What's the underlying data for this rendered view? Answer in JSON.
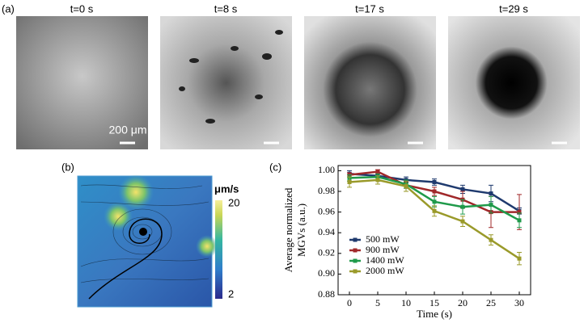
{
  "panel_labels": [
    "(a)",
    "(b)",
    "(c)"
  ],
  "image_titles": [
    "t=0 s",
    "t=8 s",
    "t=17 s",
    "t=29 s"
  ],
  "scale_bar_label": "200 μm",
  "colorbar": {
    "unit": "μm/s",
    "max_label": "20",
    "min_label": "2"
  },
  "chart_data": {
    "type": "line",
    "xlabel": "Time (s)",
    "ylabel": [
      "Average normalized",
      "MGVs (a.u.)"
    ],
    "x": [
      0,
      5,
      10,
      15,
      20,
      25,
      30
    ],
    "series": [
      {
        "name": "500 mW",
        "color": "#1f3a6e",
        "values": [
          0.997,
          0.995,
          0.991,
          0.989,
          0.982,
          0.978,
          0.961
        ],
        "errors": [
          0.003,
          0.002,
          0.003,
          0.003,
          0.004,
          0.008,
          0.003
        ]
      },
      {
        "name": "900 mW",
        "color": "#a0282a",
        "values": [
          0.996,
          0.999,
          0.986,
          0.98,
          0.972,
          0.96,
          0.96
        ],
        "errors": [
          0.002,
          0.002,
          0.003,
          0.004,
          0.008,
          0.015,
          0.017
        ]
      },
      {
        "name": "1400 mW",
        "color": "#1f9a4a",
        "values": [
          0.993,
          0.994,
          0.987,
          0.97,
          0.965,
          0.967,
          0.952
        ],
        "errors": [
          0.003,
          0.003,
          0.004,
          0.005,
          0.007,
          0.008,
          0.007
        ]
      },
      {
        "name": "2000 mW",
        "color": "#9a9a2a",
        "values": [
          0.989,
          0.991,
          0.985,
          0.961,
          0.951,
          0.933,
          0.915
        ],
        "errors": [
          0.005,
          0.004,
          0.005,
          0.005,
          0.005,
          0.005,
          0.006
        ]
      }
    ],
    "xlim": [
      -2,
      32
    ],
    "ylim": [
      0.88,
      1.005
    ],
    "xticks": [
      0,
      5,
      10,
      15,
      20,
      25,
      30
    ],
    "yticks": [
      0.88,
      {
        "value": 0.9,
        "label": "0.90"
      },
      0.92,
      0.94,
      0.96,
      0.98,
      {
        "value": 1,
        "label": "1.00"
      }
    ],
    "legend": "lower-left",
    "error_bars": true
  }
}
